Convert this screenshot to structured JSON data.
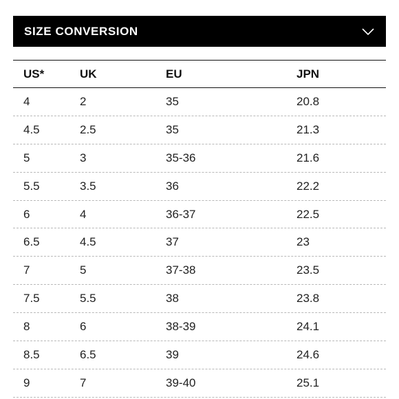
{
  "header": {
    "title": "SIZE CONVERSION",
    "toggle_icon": "chevron-down-icon"
  },
  "table": {
    "columns": [
      "US*",
      "UK",
      "EU",
      "JPN"
    ],
    "rows": [
      [
        "4",
        "2",
        "35",
        "20.8"
      ],
      [
        "4.5",
        "2.5",
        "35",
        "21.3"
      ],
      [
        "5",
        "3",
        "35-36",
        "21.6"
      ],
      [
        "5.5",
        "3.5",
        "36",
        "22.2"
      ],
      [
        "6",
        "4",
        "36-37",
        "22.5"
      ],
      [
        "6.5",
        "4.5",
        "37",
        "23"
      ],
      [
        "7",
        "5",
        "37-38",
        "23.5"
      ],
      [
        "7.5",
        "5.5",
        "38",
        "23.8"
      ],
      [
        "8",
        "6",
        "38-39",
        "24.1"
      ],
      [
        "8.5",
        "6.5",
        "39",
        "24.6"
      ],
      [
        "9",
        "7",
        "39-40",
        "25.1"
      ]
    ]
  },
  "colors": {
    "header_bg": "#000000",
    "header_text": "#ffffff",
    "divider": "#b8b8b8"
  }
}
